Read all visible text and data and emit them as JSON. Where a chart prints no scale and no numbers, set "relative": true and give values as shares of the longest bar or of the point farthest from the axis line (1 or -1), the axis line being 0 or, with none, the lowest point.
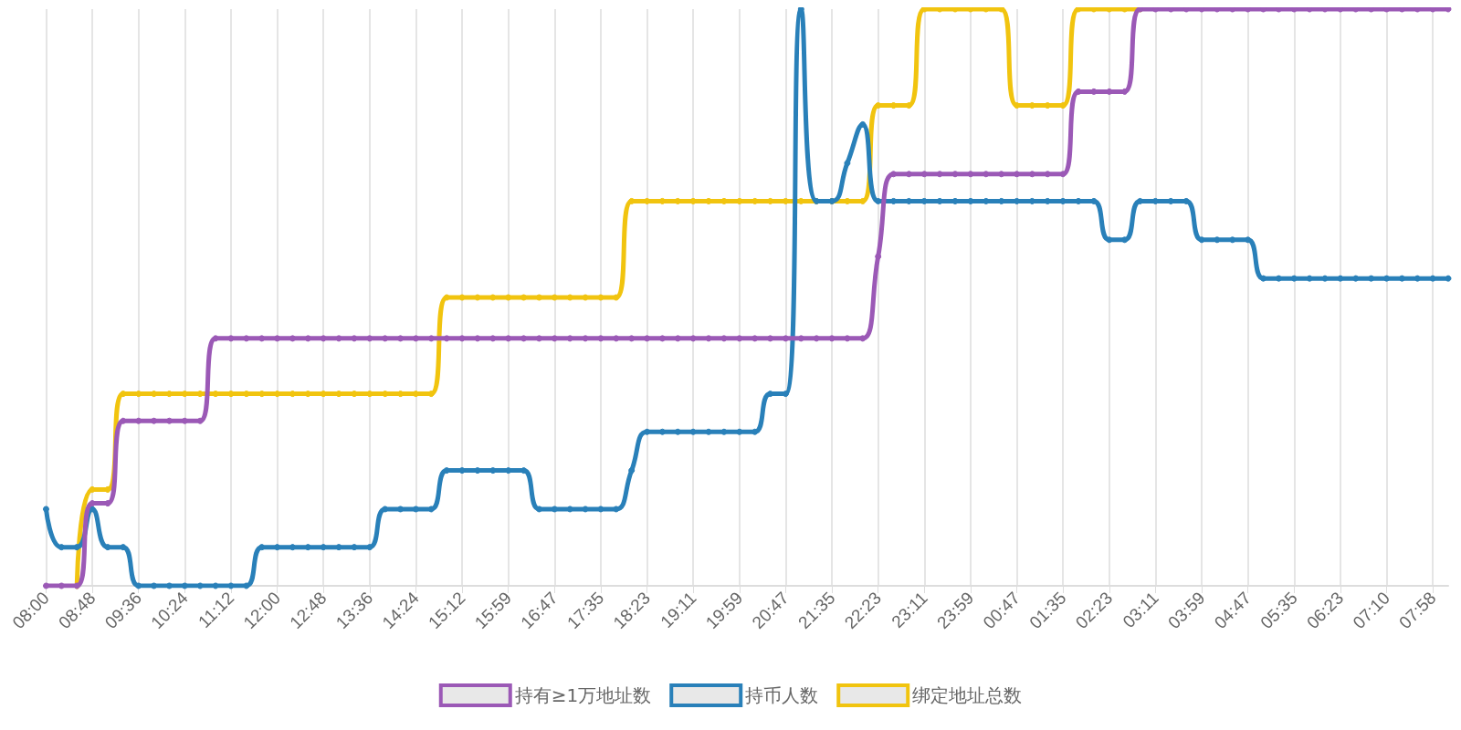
{
  "chart_data": {
    "type": "line",
    "relative": true,
    "grid": "x",
    "legend": "bottom",
    "marker": "circle",
    "line_style": "solid",
    "categories": [
      "08:00",
      null,
      null,
      "08:48",
      null,
      null,
      "09:36",
      null,
      null,
      "10:24",
      null,
      null,
      "11:12",
      null,
      null,
      "12:00",
      null,
      null,
      "12:48",
      null,
      null,
      "13:36",
      null,
      null,
      "14:24",
      null,
      null,
      "15:12",
      null,
      null,
      "15:59",
      null,
      null,
      "16:47",
      null,
      null,
      "17:35",
      null,
      null,
      "18:23",
      null,
      null,
      "19:11",
      null,
      null,
      "19:59",
      null,
      null,
      "20:47",
      null,
      null,
      "21:35",
      null,
      null,
      "22:23",
      null,
      null,
      "23:11",
      null,
      null,
      "23:59",
      null,
      null,
      "00:47",
      null,
      null,
      "01:35",
      null,
      null,
      "02:23",
      null,
      null,
      "03:11",
      null,
      null,
      "03:59",
      null,
      null,
      "04:47",
      null,
      null,
      "05:35",
      null,
      null,
      "06:23",
      null,
      null,
      "07:10",
      null,
      null,
      "07:58",
      null
    ],
    "series": [
      {
        "name": "持有≥1万地址数",
        "color": "#9b59b6",
        "values": [
          0,
          0,
          0,
          0.143,
          0.143,
          0.286,
          0.286,
          0.286,
          0.286,
          0.286,
          0.286,
          0.429,
          0.429,
          0.429,
          0.429,
          0.429,
          0.429,
          0.429,
          0.429,
          0.429,
          0.429,
          0.429,
          0.429,
          0.429,
          0.429,
          0.429,
          0.429,
          0.429,
          0.429,
          0.429,
          0.429,
          0.429,
          0.429,
          0.429,
          0.429,
          0.429,
          0.429,
          0.429,
          0.429,
          0.429,
          0.429,
          0.429,
          0.429,
          0.429,
          0.429,
          0.429,
          0.429,
          0.429,
          0.429,
          0.429,
          0.429,
          0.429,
          0.429,
          0.429,
          0.571,
          0.714,
          0.714,
          0.714,
          0.714,
          0.714,
          0.714,
          0.714,
          0.714,
          0.714,
          0.714,
          0.714,
          0.714,
          0.857,
          0.857,
          0.857,
          0.857,
          1,
          1,
          1,
          1,
          1,
          1,
          1,
          1,
          1,
          1,
          1,
          1,
          1,
          1,
          1,
          1,
          1,
          1,
          1,
          1,
          1
        ]
      },
      {
        "name": "持币人数",
        "color": "#2980b9",
        "values": [
          0.133,
          0.067,
          0.067,
          0.133,
          0.067,
          0.067,
          0,
          0,
          0,
          0,
          0,
          0,
          0,
          0,
          0.067,
          0.067,
          0.067,
          0.067,
          0.067,
          0.067,
          0.067,
          0.067,
          0.133,
          0.133,
          0.133,
          0.133,
          0.2,
          0.2,
          0.2,
          0.2,
          0.2,
          0.2,
          0.133,
          0.133,
          0.133,
          0.133,
          0.133,
          0.133,
          0.2,
          0.267,
          0.267,
          0.267,
          0.267,
          0.267,
          0.267,
          0.267,
          0.267,
          0.333,
          0.333,
          1,
          0.667,
          0.667,
          0.733,
          0.8,
          0.667,
          0.667,
          0.667,
          0.667,
          0.667,
          0.667,
          0.667,
          0.667,
          0.667,
          0.667,
          0.667,
          0.667,
          0.667,
          0.667,
          0.667,
          0.6,
          0.6,
          0.667,
          0.667,
          0.667,
          0.667,
          0.6,
          0.6,
          0.6,
          0.6,
          0.533,
          0.533,
          0.533,
          0.533,
          0.533,
          0.533,
          0.533,
          0.533,
          0.533,
          0.533,
          0.533,
          0.533,
          0.533
        ]
      },
      {
        "name": "绑定地址总数",
        "color": "#f1c40f",
        "values": [
          null,
          null,
          0,
          0.167,
          0.167,
          0.333,
          0.333,
          0.333,
          0.333,
          0.333,
          0.333,
          0.333,
          0.333,
          0.333,
          0.333,
          0.333,
          0.333,
          0.333,
          0.333,
          0.333,
          0.333,
          0.333,
          0.333,
          0.333,
          0.333,
          0.333,
          0.5,
          0.5,
          0.5,
          0.5,
          0.5,
          0.5,
          0.5,
          0.5,
          0.5,
          0.5,
          0.5,
          0.5,
          0.667,
          0.667,
          0.667,
          0.667,
          0.667,
          0.667,
          0.667,
          0.667,
          0.667,
          0.667,
          0.667,
          0.667,
          0.667,
          0.667,
          0.667,
          0.667,
          0.833,
          0.833,
          0.833,
          1,
          1,
          1,
          1,
          1,
          1,
          0.833,
          0.833,
          0.833,
          0.833,
          1,
          1,
          1,
          1,
          1,
          null,
          null,
          null,
          null,
          null,
          null,
          null,
          null,
          null,
          null,
          null,
          null,
          null,
          null,
          null,
          null,
          null,
          null,
          null,
          null
        ]
      }
    ]
  }
}
